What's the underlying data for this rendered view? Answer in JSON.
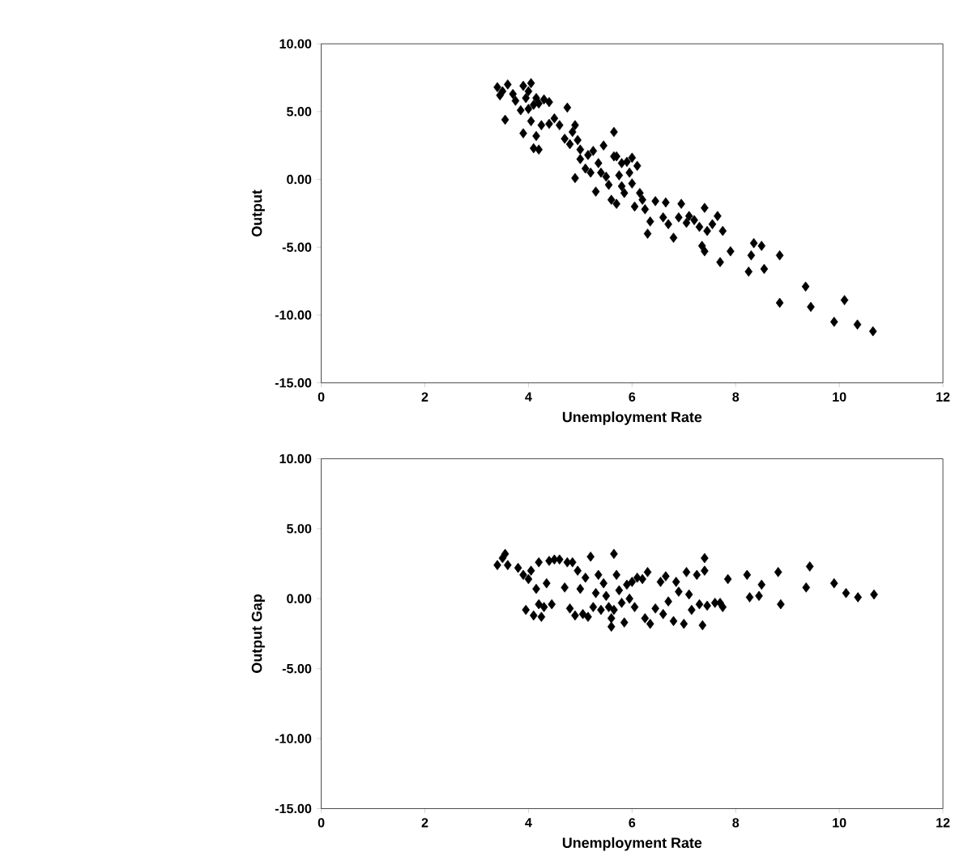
{
  "chart_data": [
    {
      "type": "scatter",
      "xlabel": "Unemployment Rate",
      "ylabel": "Output",
      "marker": "diamond",
      "color": "#000000",
      "xlim": [
        0,
        12
      ],
      "ylim": [
        -15,
        10
      ],
      "xticks": [
        0,
        2,
        4,
        6,
        8,
        10,
        12
      ],
      "yticks": [
        {
          "value": -15,
          "label": "-15.00"
        },
        {
          "value": -10,
          "label": "-10.00"
        },
        {
          "value": -5,
          "label": "-5.00"
        },
        {
          "value": 0,
          "label": "0.00"
        },
        {
          "value": 5,
          "label": "5.00"
        },
        {
          "value": 10,
          "label": "10.00"
        }
      ],
      "x": [
        3.4,
        3.45,
        3.5,
        3.6,
        3.7,
        3.75,
        3.55,
        3.9,
        3.95,
        4.0,
        4.05,
        4.1,
        4.15,
        4.2,
        4.3,
        4.4,
        3.9,
        4.05,
        4.1,
        4.2,
        4.15,
        4.25,
        4.4,
        4.5,
        4.6,
        4.75,
        3.85,
        4.0,
        4.7,
        4.8,
        4.85,
        4.9,
        4.95,
        5.0,
        4.9,
        5.0,
        5.1,
        5.15,
        5.2,
        5.25,
        5.3,
        5.35,
        5.4,
        5.45,
        5.5,
        5.55,
        5.6,
        5.65,
        5.65,
        5.7,
        5.75,
        5.8,
        5.85,
        5.9,
        5.95,
        6.0,
        6.05,
        6.0,
        6.1,
        6.15,
        5.7,
        5.8,
        6.2,
        6.25,
        6.3,
        6.35,
        6.45,
        6.6,
        6.65,
        6.7,
        6.8,
        6.9,
        6.95,
        7.05,
        7.1,
        7.2,
        7.3,
        7.35,
        7.4,
        7.4,
        7.45,
        7.55,
        7.65,
        7.7,
        7.75,
        7.9,
        8.25,
        8.3,
        8.35,
        8.5,
        8.55,
        8.85,
        8.85,
        9.35,
        9.45,
        9.9,
        10.1,
        10.35,
        10.65
      ],
      "values": [
        6.8,
        6.2,
        6.5,
        7.0,
        6.3,
        5.8,
        4.4,
        6.9,
        6.0,
        6.5,
        7.1,
        5.5,
        6.0,
        5.6,
        5.9,
        5.7,
        3.4,
        4.3,
        2.3,
        2.2,
        3.2,
        4.0,
        4.1,
        4.5,
        4.0,
        5.3,
        5.1,
        5.2,
        3.0,
        2.6,
        3.5,
        4.0,
        2.9,
        2.2,
        0.1,
        1.5,
        0.8,
        1.8,
        0.5,
        2.1,
        -0.9,
        1.2,
        0.5,
        2.5,
        0.2,
        -0.4,
        -1.5,
        3.5,
        1.7,
        -1.8,
        0.3,
        -0.5,
        -1.0,
        1.3,
        0.5,
        -0.3,
        -2.0,
        1.6,
        1.0,
        -1.0,
        1.7,
        1.2,
        -1.5,
        -2.2,
        -4.0,
        -3.1,
        -1.6,
        -2.8,
        -1.7,
        -3.3,
        -4.3,
        -2.8,
        -1.8,
        -3.2,
        -2.7,
        -3.0,
        -3.5,
        -4.9,
        -2.1,
        -5.3,
        -3.8,
        -3.3,
        -2.7,
        -6.1,
        -3.8,
        -5.3,
        -6.8,
        -5.6,
        -4.7,
        -4.9,
        -6.6,
        -5.6,
        -9.1,
        -7.9,
        -9.4,
        -10.5,
        -8.9,
        -10.7,
        -11.2
      ]
    },
    {
      "type": "scatter",
      "xlabel": "Unemployment Rate",
      "ylabel": "Output Gap",
      "marker": "diamond",
      "color": "#000000",
      "xlim": [
        0,
        12
      ],
      "ylim": [
        -15,
        10
      ],
      "xticks": [
        0,
        2,
        4,
        6,
        8,
        10,
        12
      ],
      "yticks": [
        {
          "value": -15,
          "label": "-15.00"
        },
        {
          "value": -10,
          "label": "-10.00"
        },
        {
          "value": -5,
          "label": "-5.00"
        },
        {
          "value": 0,
          "label": "0.00"
        },
        {
          "value": 5,
          "label": "5.00"
        },
        {
          "value": 10,
          "label": "10.00"
        }
      ],
      "x": [
        3.4,
        3.5,
        3.55,
        3.6,
        3.8,
        3.9,
        3.95,
        4.0,
        4.05,
        4.1,
        4.15,
        4.2,
        4.2,
        4.25,
        4.3,
        4.35,
        4.4,
        4.45,
        4.5,
        4.6,
        4.7,
        4.75,
        4.8,
        4.85,
        4.9,
        4.95,
        5.0,
        5.05,
        5.1,
        5.15,
        5.2,
        5.25,
        5.3,
        5.35,
        5.4,
        5.45,
        5.5,
        5.55,
        5.6,
        5.6,
        5.65,
        5.65,
        5.7,
        5.75,
        5.8,
        5.85,
        5.9,
        5.95,
        6.0,
        6.05,
        6.1,
        6.2,
        6.25,
        6.3,
        6.35,
        6.45,
        6.55,
        6.6,
        6.65,
        6.7,
        6.8,
        6.85,
        6.9,
        7.0,
        7.05,
        7.1,
        7.15,
        7.25,
        7.3,
        7.36,
        7.4,
        7.4,
        7.45,
        7.6,
        7.7,
        7.75,
        7.85,
        8.22,
        8.27,
        8.45,
        8.5,
        8.82,
        8.87,
        9.36,
        9.43,
        9.9,
        10.13,
        10.36,
        10.67
      ],
      "values": [
        2.4,
        2.9,
        3.2,
        2.4,
        2.2,
        1.7,
        -0.8,
        1.4,
        2.0,
        -1.2,
        0.7,
        2.6,
        -0.4,
        -1.3,
        -0.6,
        1.1,
        2.7,
        -0.4,
        2.8,
        2.8,
        0.8,
        2.6,
        -0.7,
        2.6,
        -1.2,
        2.0,
        0.7,
        -1.1,
        1.5,
        -1.3,
        3.0,
        -0.6,
        0.4,
        1.7,
        -0.8,
        1.1,
        0.2,
        -0.6,
        -1.4,
        -2.0,
        3.2,
        -0.8,
        1.7,
        0.6,
        -0.3,
        -1.7,
        1.0,
        0.0,
        1.2,
        -0.6,
        1.5,
        1.4,
        -1.4,
        1.9,
        -1.8,
        -0.7,
        1.2,
        -1.1,
        1.6,
        -0.2,
        -1.6,
        1.2,
        0.5,
        -1.8,
        1.9,
        0.3,
        -0.8,
        1.7,
        -0.4,
        -1.9,
        2.9,
        2.0,
        -0.5,
        -0.3,
        -0.3,
        -0.6,
        1.4,
        1.7,
        0.1,
        0.2,
        1.0,
        1.9,
        -0.4,
        0.8,
        2.3,
        1.1,
        0.4,
        0.1,
        0.3
      ]
    }
  ]
}
